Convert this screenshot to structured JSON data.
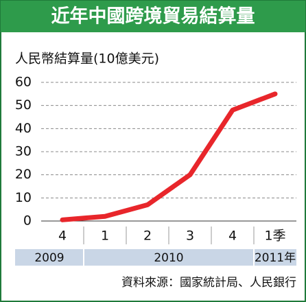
{
  "chart_data": {
    "type": "line",
    "title": "近年中國跨境貿易結算量",
    "y_label": "人民幣結算量(10億美元)",
    "categories": [
      "4",
      "1",
      "2",
      "3",
      "4",
      "1季"
    ],
    "years": [
      "2009",
      "2010",
      "2010",
      "2010",
      "2010",
      "2011年"
    ],
    "series": [
      {
        "name": "人民幣結算量",
        "color": "#e8262b",
        "values": [
          0.5,
          2,
          7,
          20,
          48,
          55
        ]
      }
    ],
    "ylim": [
      0,
      60
    ],
    "yticks": [
      0,
      10,
      20,
      30,
      40,
      50,
      60
    ],
    "grid": true,
    "source": "資料來源：國家統計局、人民銀行"
  }
}
